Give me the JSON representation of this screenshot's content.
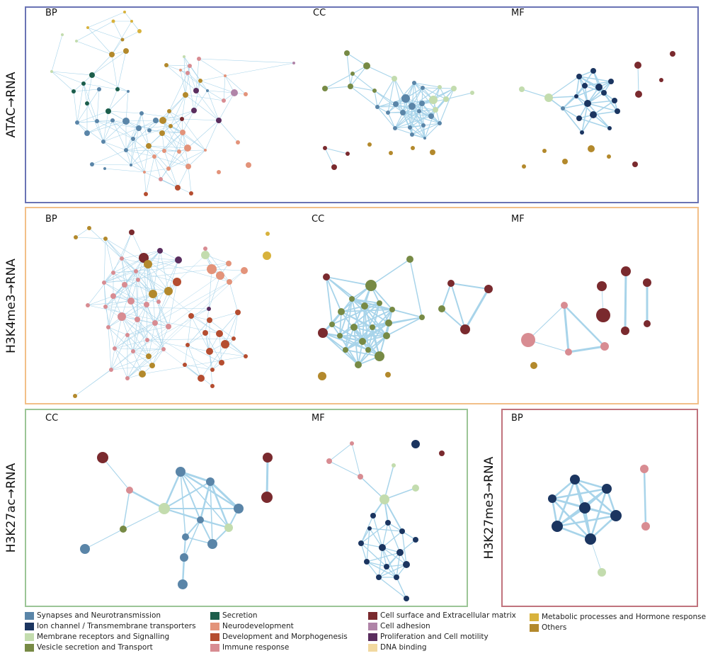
{
  "colors": {
    "edge": "#a8d4ea",
    "atac_border": "#6a73b4",
    "h3k4_border": "#f2bf88",
    "h3k27ac_border": "#9bc596",
    "h3k27me3_border": "#c0737d"
  },
  "categories": {
    "syn": {
      "label": "Synapses and Neurotransmission",
      "color": "#5a85a8"
    },
    "ion": {
      "label": "Ion channel / Transmembrane transporters",
      "color": "#1b3560"
    },
    "mem": {
      "label": "Membrane receptors and Signalling",
      "color": "#c3dcae"
    },
    "ves": {
      "label": "Vesicle secretion and Transport",
      "color": "#778a45"
    },
    "sec": {
      "label": "Secretion",
      "color": "#1c5e4b"
    },
    "neu": {
      "label": "Neurodevelopment",
      "color": "#e3937a"
    },
    "dev": {
      "label": "Development and Morphogenesis",
      "color": "#b54d30"
    },
    "imm": {
      "label": "Immune response",
      "color": "#d88c92"
    },
    "ecm": {
      "label": "Cell surface and Extracellular matrix",
      "color": "#7a2a2e"
    },
    "adh": {
      "label": "Cell adhesion",
      "color": "#b084a8"
    },
    "pro": {
      "label": "Proliferation and Cell motility",
      "color": "#5a2d5e"
    },
    "dna": {
      "label": "DNA binding",
      "color": "#f2d9a0"
    },
    "met": {
      "label": "Metabolic processes and Hormone response",
      "color": "#d8b23c"
    },
    "oth": {
      "label": "Others",
      "color": "#b3892c"
    }
  },
  "legend_columns": [
    [
      "syn",
      "ion",
      "mem",
      "ves"
    ],
    [
      "sec",
      "neu",
      "dev",
      "imm"
    ],
    [
      "ecm",
      "adh",
      "pro",
      "dna"
    ],
    [
      "met",
      "oth"
    ]
  ],
  "panels": {
    "atac": {
      "row_label": "ATAC→RNA",
      "subs": [
        "BP",
        "CC",
        "MF"
      ]
    },
    "h3k4": {
      "row_label": "H3K4me3→RNA",
      "subs": [
        "BP",
        "CC",
        "MF"
      ]
    },
    "h3k27ac": {
      "row_label": "H3K27ac→RNA",
      "subs": [
        "CC",
        "MF"
      ]
    },
    "h3k27me3": {
      "row_label": "H3K27me3→RNA",
      "subs": [
        "BP"
      ]
    }
  }
}
